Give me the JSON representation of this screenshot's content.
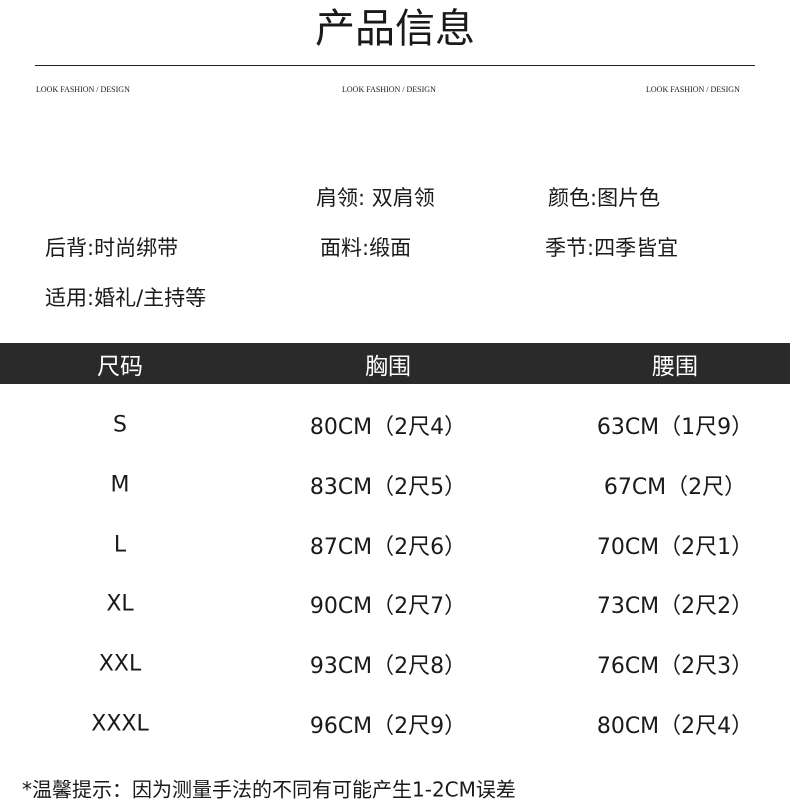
{
  "header": {
    "title": "产品信息",
    "taglines": [
      "LOOK FASHION / DESIGN",
      "LOOK FASHION / DESIGN",
      "LOOK FASHION / DESIGN"
    ]
  },
  "attributes": [
    "肩领: 双肩领",
    "颜色:图片色",
    "后背:时尚绑带",
    "面料:缎面",
    "季节:四季皆宜",
    "适用:婚礼/主持等"
  ],
  "table": {
    "columns": [
      "尺码",
      "胸围",
      "腰围"
    ],
    "rows": [
      [
        "S",
        "80CM（2尺4）",
        "63CM（1尺9）"
      ],
      [
        "M",
        "83CM（2尺5）",
        "67CM（2尺）"
      ],
      [
        "L",
        "87CM（2尺6）",
        "70CM（2尺1）"
      ],
      [
        "XL",
        "90CM（2尺7）",
        "73CM（2尺2）"
      ],
      [
        "XXL",
        "93CM（2尺8）",
        "76CM（2尺3）"
      ],
      [
        "XXXL",
        "96CM（2尺9）",
        "80CM（2尺4）"
      ]
    ]
  },
  "note": "*温馨提示：因为测量手法的不同有可能产生1-2CM误差"
}
